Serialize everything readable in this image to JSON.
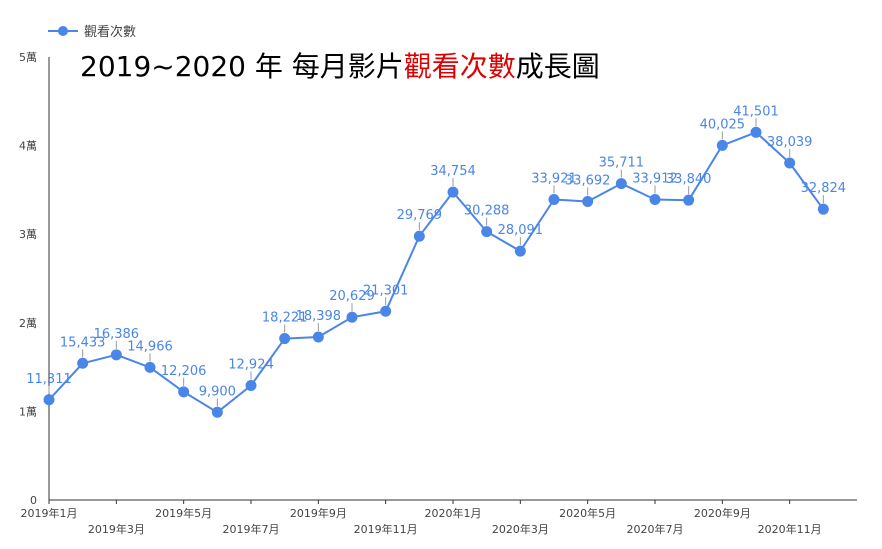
{
  "colors": {
    "series": "#4a86e8",
    "highlight": "#e00000",
    "axis": "#333333",
    "text": "#444444"
  },
  "chart_data": {
    "type": "line",
    "title_parts": [
      {
        "text": "2019~2020 年 每月影片",
        "color": "#000000"
      },
      {
        "text": "觀看次數",
        "color": "#e00000"
      },
      {
        "text": "成長圖",
        "color": "#000000"
      }
    ],
    "legend": {
      "label": "觀看次數",
      "position": "top-left"
    },
    "x": [
      "2019年1月",
      "2019年2月",
      "2019年3月",
      "2019年4月",
      "2019年5月",
      "2019年6月",
      "2019年7月",
      "2019年8月",
      "2019年9月",
      "2019年10月",
      "2019年11月",
      "2019年12月",
      "2020年1月",
      "2020年2月",
      "2020年3月",
      "2020年4月",
      "2020年5月",
      "2020年6月",
      "2020年7月",
      "2020年8月",
      "2020年9月",
      "2020年10月",
      "2020年11月",
      "2020年12月"
    ],
    "x_tick_labels": [
      {
        "index": 0,
        "label": "2019年1月",
        "row": 0
      },
      {
        "index": 2,
        "label": "2019年3月",
        "row": 1
      },
      {
        "index": 4,
        "label": "2019年5月",
        "row": 0
      },
      {
        "index": 6,
        "label": "2019年7月",
        "row": 1
      },
      {
        "index": 8,
        "label": "2019年9月",
        "row": 0
      },
      {
        "index": 10,
        "label": "2019年11月",
        "row": 1
      },
      {
        "index": 12,
        "label": "2020年1月",
        "row": 0
      },
      {
        "index": 14,
        "label": "2020年3月",
        "row": 1
      },
      {
        "index": 16,
        "label": "2020年5月",
        "row": 0
      },
      {
        "index": 18,
        "label": "2020年7月",
        "row": 1
      },
      {
        "index": 20,
        "label": "2020年9月",
        "row": 0
      },
      {
        "index": 22,
        "label": "2020年11月",
        "row": 1
      }
    ],
    "series": [
      {
        "name": "觀看次數",
        "values": [
          11311,
          15433,
          16386,
          14966,
          12206,
          9900,
          12924,
          18221,
          18398,
          20629,
          21301,
          29769,
          34754,
          30288,
          28091,
          33921,
          33692,
          35711,
          33912,
          33840,
          40025,
          41501,
          38039,
          32824
        ],
        "labels": [
          "11,311",
          "15,433",
          "16,386",
          "14,966",
          "12,206",
          "9,900",
          "12,924",
          "18,221",
          "18,398",
          "20,629",
          "21,301",
          "29,769",
          "34,754",
          "30,288",
          "28,091",
          "33,921",
          "33,692",
          "35,711",
          "33,912",
          "33,840",
          "40,025",
          "41,501",
          "38,039",
          "32,824"
        ]
      }
    ],
    "ylim": [
      0,
      50000
    ],
    "y_ticks": [
      {
        "value": 0,
        "label": "0"
      },
      {
        "value": 10000,
        "label": "1萬"
      },
      {
        "value": 20000,
        "label": "2萬"
      },
      {
        "value": 30000,
        "label": "3萬"
      },
      {
        "value": 40000,
        "label": "4萬"
      },
      {
        "value": 50000,
        "label": "5萬"
      }
    ],
    "grid": false
  }
}
